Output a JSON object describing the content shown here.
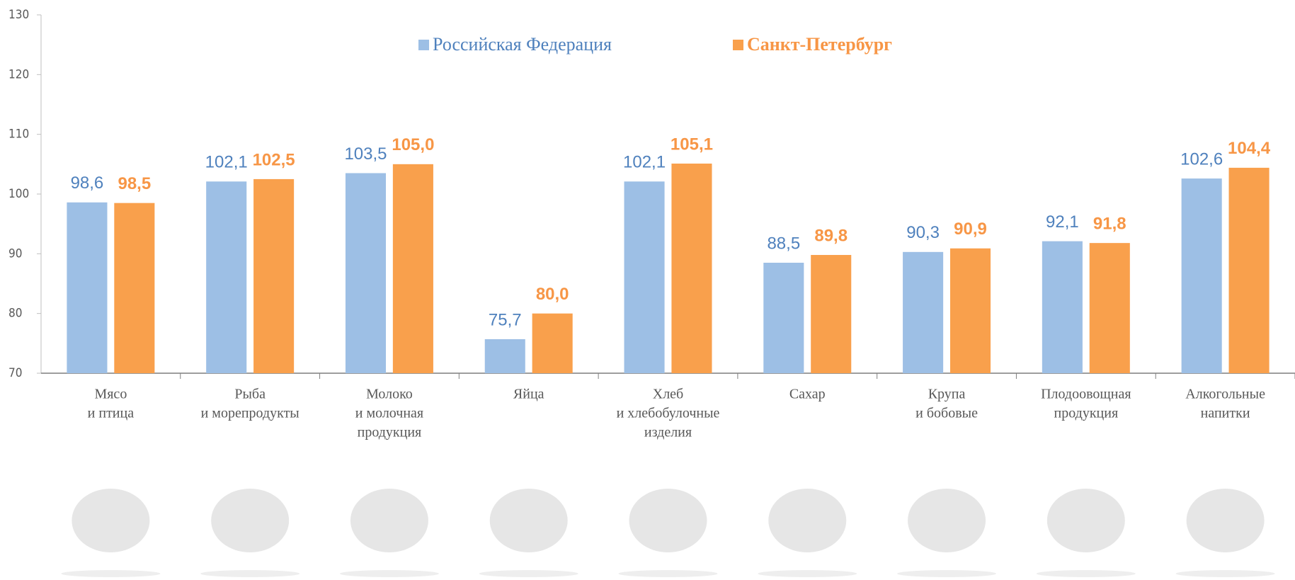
{
  "chart_data": {
    "type": "bar",
    "categories": [
      [
        "Мясо",
        "и птица"
      ],
      [
        "Рыба",
        "и морепродукты"
      ],
      [
        "Молоко",
        "и молочная",
        "продукция"
      ],
      [
        "Яйца"
      ],
      [
        "Хлеб",
        "и хлебобулочные",
        "изделия"
      ],
      [
        "Сахар"
      ],
      [
        "Крупа",
        "и бобовые"
      ],
      [
        "Плодоовощная",
        "продукция"
      ],
      [
        "Алкогольные",
        "напитки"
      ]
    ],
    "series": [
      {
        "name": "Российская Федерация",
        "color": "#9dbfe5",
        "label_color": "#4f81bd",
        "values": [
          98.6,
          102.1,
          103.5,
          75.7,
          102.1,
          88.5,
          90.3,
          92.1,
          102.6
        ],
        "value_labels": [
          "98,6",
          "102,1",
          "103,5",
          "75,7",
          "102,1",
          "88,5",
          "90,3",
          "92,1",
          "102,6"
        ]
      },
      {
        "name": "Санкт-Петербург",
        "color": "#f9a04c",
        "label_color": "#f79646",
        "values": [
          98.5,
          102.5,
          105.0,
          80.0,
          105.1,
          89.8,
          90.9,
          91.8,
          104.4
        ],
        "value_labels": [
          "98,5",
          "102,5",
          "105,0",
          "80,0",
          "105,1",
          "89,8",
          "90,9",
          "91,8",
          "104,4"
        ]
      }
    ],
    "ylim": [
      70,
      130
    ],
    "yticks": [
      70,
      80,
      90,
      100,
      110,
      120,
      130
    ],
    "grid": false
  }
}
